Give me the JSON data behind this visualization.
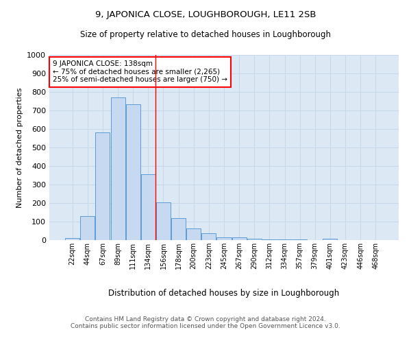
{
  "title": "9, JAPONICA CLOSE, LOUGHBOROUGH, LE11 2SB",
  "subtitle": "Size of property relative to detached houses in Loughborough",
  "xlabel": "Distribution of detached houses by size in Loughborough",
  "ylabel": "Number of detached properties",
  "footer_line1": "Contains HM Land Registry data © Crown copyright and database right 2024.",
  "footer_line2": "Contains public sector information licensed under the Open Government Licence v3.0.",
  "bar_labels": [
    "22sqm",
    "44sqm",
    "67sqm",
    "89sqm",
    "111sqm",
    "134sqm",
    "156sqm",
    "178sqm",
    "200sqm",
    "223sqm",
    "245sqm",
    "267sqm",
    "290sqm",
    "312sqm",
    "334sqm",
    "357sqm",
    "379sqm",
    "401sqm",
    "423sqm",
    "446sqm",
    "468sqm"
  ],
  "bar_values": [
    10,
    128,
    580,
    770,
    735,
    355,
    205,
    120,
    62,
    37,
    15,
    15,
    8,
    5,
    3,
    5,
    0,
    7,
    0,
    0,
    0
  ],
  "bar_color": "#c6d9f0",
  "bar_edge_color": "#5b9bd5",
  "grid_color": "#c8d8e8",
  "bg_color": "#dce9f5",
  "property_line_color": "red",
  "annotation_text": "9 JAPONICA CLOSE: 138sqm\n← 75% of detached houses are smaller (2,265)\n25% of semi-detached houses are larger (750) →",
  "annotation_box_color": "white",
  "annotation_box_edge_color": "red",
  "ylim": [
    0,
    1000
  ],
  "yticks": [
    0,
    100,
    200,
    300,
    400,
    500,
    600,
    700,
    800,
    900,
    1000
  ]
}
